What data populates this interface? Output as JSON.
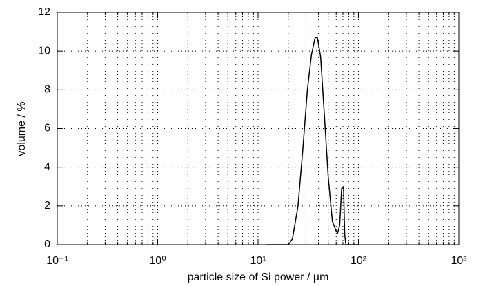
{
  "chart_data": {
    "type": "line",
    "xlabel": "particle size of Si power / µm",
    "ylabel": "volume / %",
    "xscale": "log",
    "grid": true,
    "minor_grid": true,
    "xlim": [
      0.1,
      1000
    ],
    "ylim": [
      0,
      12
    ],
    "xticks": [
      {
        "value": 0.1,
        "label": "10⁻¹"
      },
      {
        "value": 1,
        "label": "10⁰"
      },
      {
        "value": 10,
        "label": "10¹"
      },
      {
        "value": 100,
        "label": "10²"
      },
      {
        "value": 1000,
        "label": "10³"
      }
    ],
    "yticks": [
      0,
      2,
      4,
      6,
      8,
      10,
      12
    ],
    "series": [
      {
        "color": "#000000",
        "x": [
          12,
          20,
          22,
          25,
          28,
          31,
          34,
          37,
          39,
          42,
          46,
          50,
          55,
          60,
          62,
          65,
          68,
          71,
          73,
          75,
          100
        ],
        "values": [
          0,
          0,
          0.3,
          2,
          5,
          8,
          9.8,
          10.7,
          10.7,
          9.7,
          6.5,
          3.5,
          1.2,
          0.7,
          0.6,
          1,
          2.9,
          3,
          0.5,
          0,
          0
        ]
      }
    ]
  }
}
